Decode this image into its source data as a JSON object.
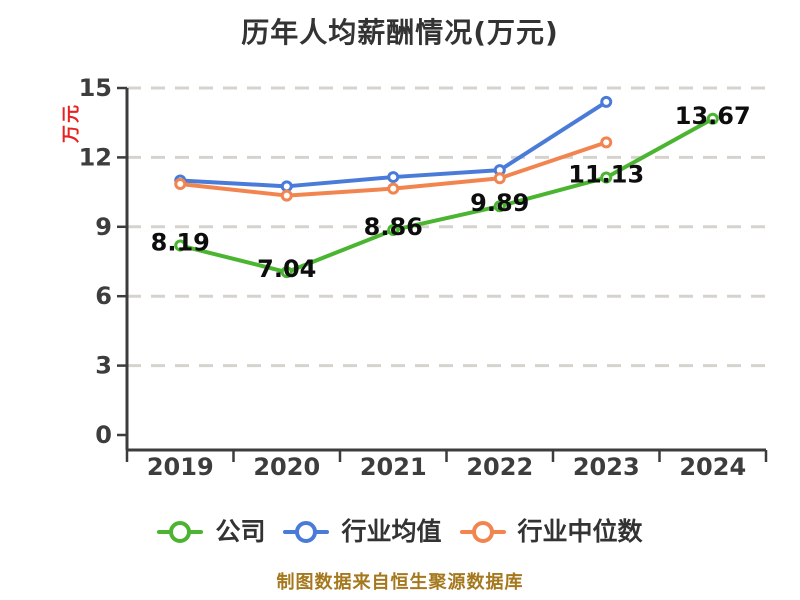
{
  "title": "历年人均薪酬情况(万元)",
  "y_axis_label": "万元",
  "footer": "制图数据来自恒生聚源数据库",
  "colors": {
    "company_green": "#4bb531",
    "industry_avg_blue": "#4a7bd9",
    "industry_median_orange": "#f2854f",
    "y_label_red": "#e62222",
    "footer_gold": "#a5781e",
    "axis": "#3c3c3c",
    "tick_text": "#3d3d3d",
    "gridline": "#d6d3cf",
    "data_label": "#0d0d0d"
  },
  "chart_data": {
    "type": "line",
    "title": "历年人均薪酬情况(万元)",
    "xlabel": "",
    "ylabel": "万元",
    "categories": [
      "2019",
      "2020",
      "2021",
      "2022",
      "2023",
      "2024"
    ],
    "y_ticks": [
      0,
      3,
      6,
      9,
      12,
      15
    ],
    "ylim": [
      0,
      15
    ],
    "grid": "horizontal-dashed",
    "legend_position": "bottom",
    "series": [
      {
        "id": "company",
        "name": "公司",
        "color": "#4bb531",
        "values": [
          8.19,
          7.04,
          8.86,
          9.89,
          11.13,
          13.67
        ],
        "show_labels": true,
        "labels": [
          "8.19",
          "7.04",
          "8.86",
          "9.89",
          "11.13",
          "13.67"
        ]
      },
      {
        "id": "industry-average",
        "name": "行业均值",
        "color": "#4a7bd9",
        "values": [
          11.0,
          10.75,
          11.15,
          11.45,
          14.4,
          null
        ],
        "show_labels": false
      },
      {
        "id": "industry-median",
        "name": "行业中位数",
        "color": "#f2854f",
        "values": [
          10.85,
          10.35,
          10.65,
          11.1,
          12.65,
          null
        ],
        "show_labels": false
      }
    ]
  }
}
